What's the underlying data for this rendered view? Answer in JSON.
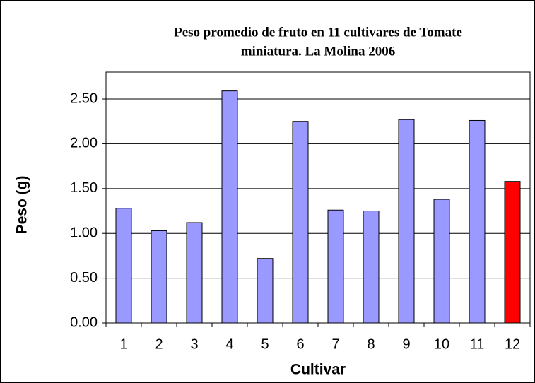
{
  "chart_data": {
    "type": "bar",
    "title": "Peso promedio de fruto en 11 cultivares de Tomate",
    "subtitle": "miniatura. La Molina 2006",
    "x_label": "Cultivar",
    "y_label": "Peso (g)",
    "categories": [
      "1",
      "2",
      "3",
      "4",
      "5",
      "6",
      "7",
      "8",
      "9",
      "10",
      "11",
      "12"
    ],
    "values": [
      1.28,
      1.03,
      1.12,
      2.59,
      0.72,
      2.25,
      1.26,
      1.25,
      2.27,
      1.38,
      2.26,
      1.58
    ],
    "colors": [
      "#9999ff",
      "#9999ff",
      "#9999ff",
      "#9999ff",
      "#9999ff",
      "#9999ff",
      "#9999ff",
      "#9999ff",
      "#9999ff",
      "#9999ff",
      "#9999ff",
      "#ff0000"
    ],
    "ylim": [
      0,
      2.8
    ],
    "yticks": [
      {
        "value": 0,
        "label": "0.00"
      },
      {
        "value": 0.5,
        "label": "0.50"
      },
      {
        "value": 1,
        "label": "1.00"
      },
      {
        "value": 1.5,
        "label": "1.50"
      },
      {
        "value": 2,
        "label": "2.00"
      },
      {
        "value": 2.5,
        "label": "2.50"
      }
    ],
    "grid": true
  }
}
